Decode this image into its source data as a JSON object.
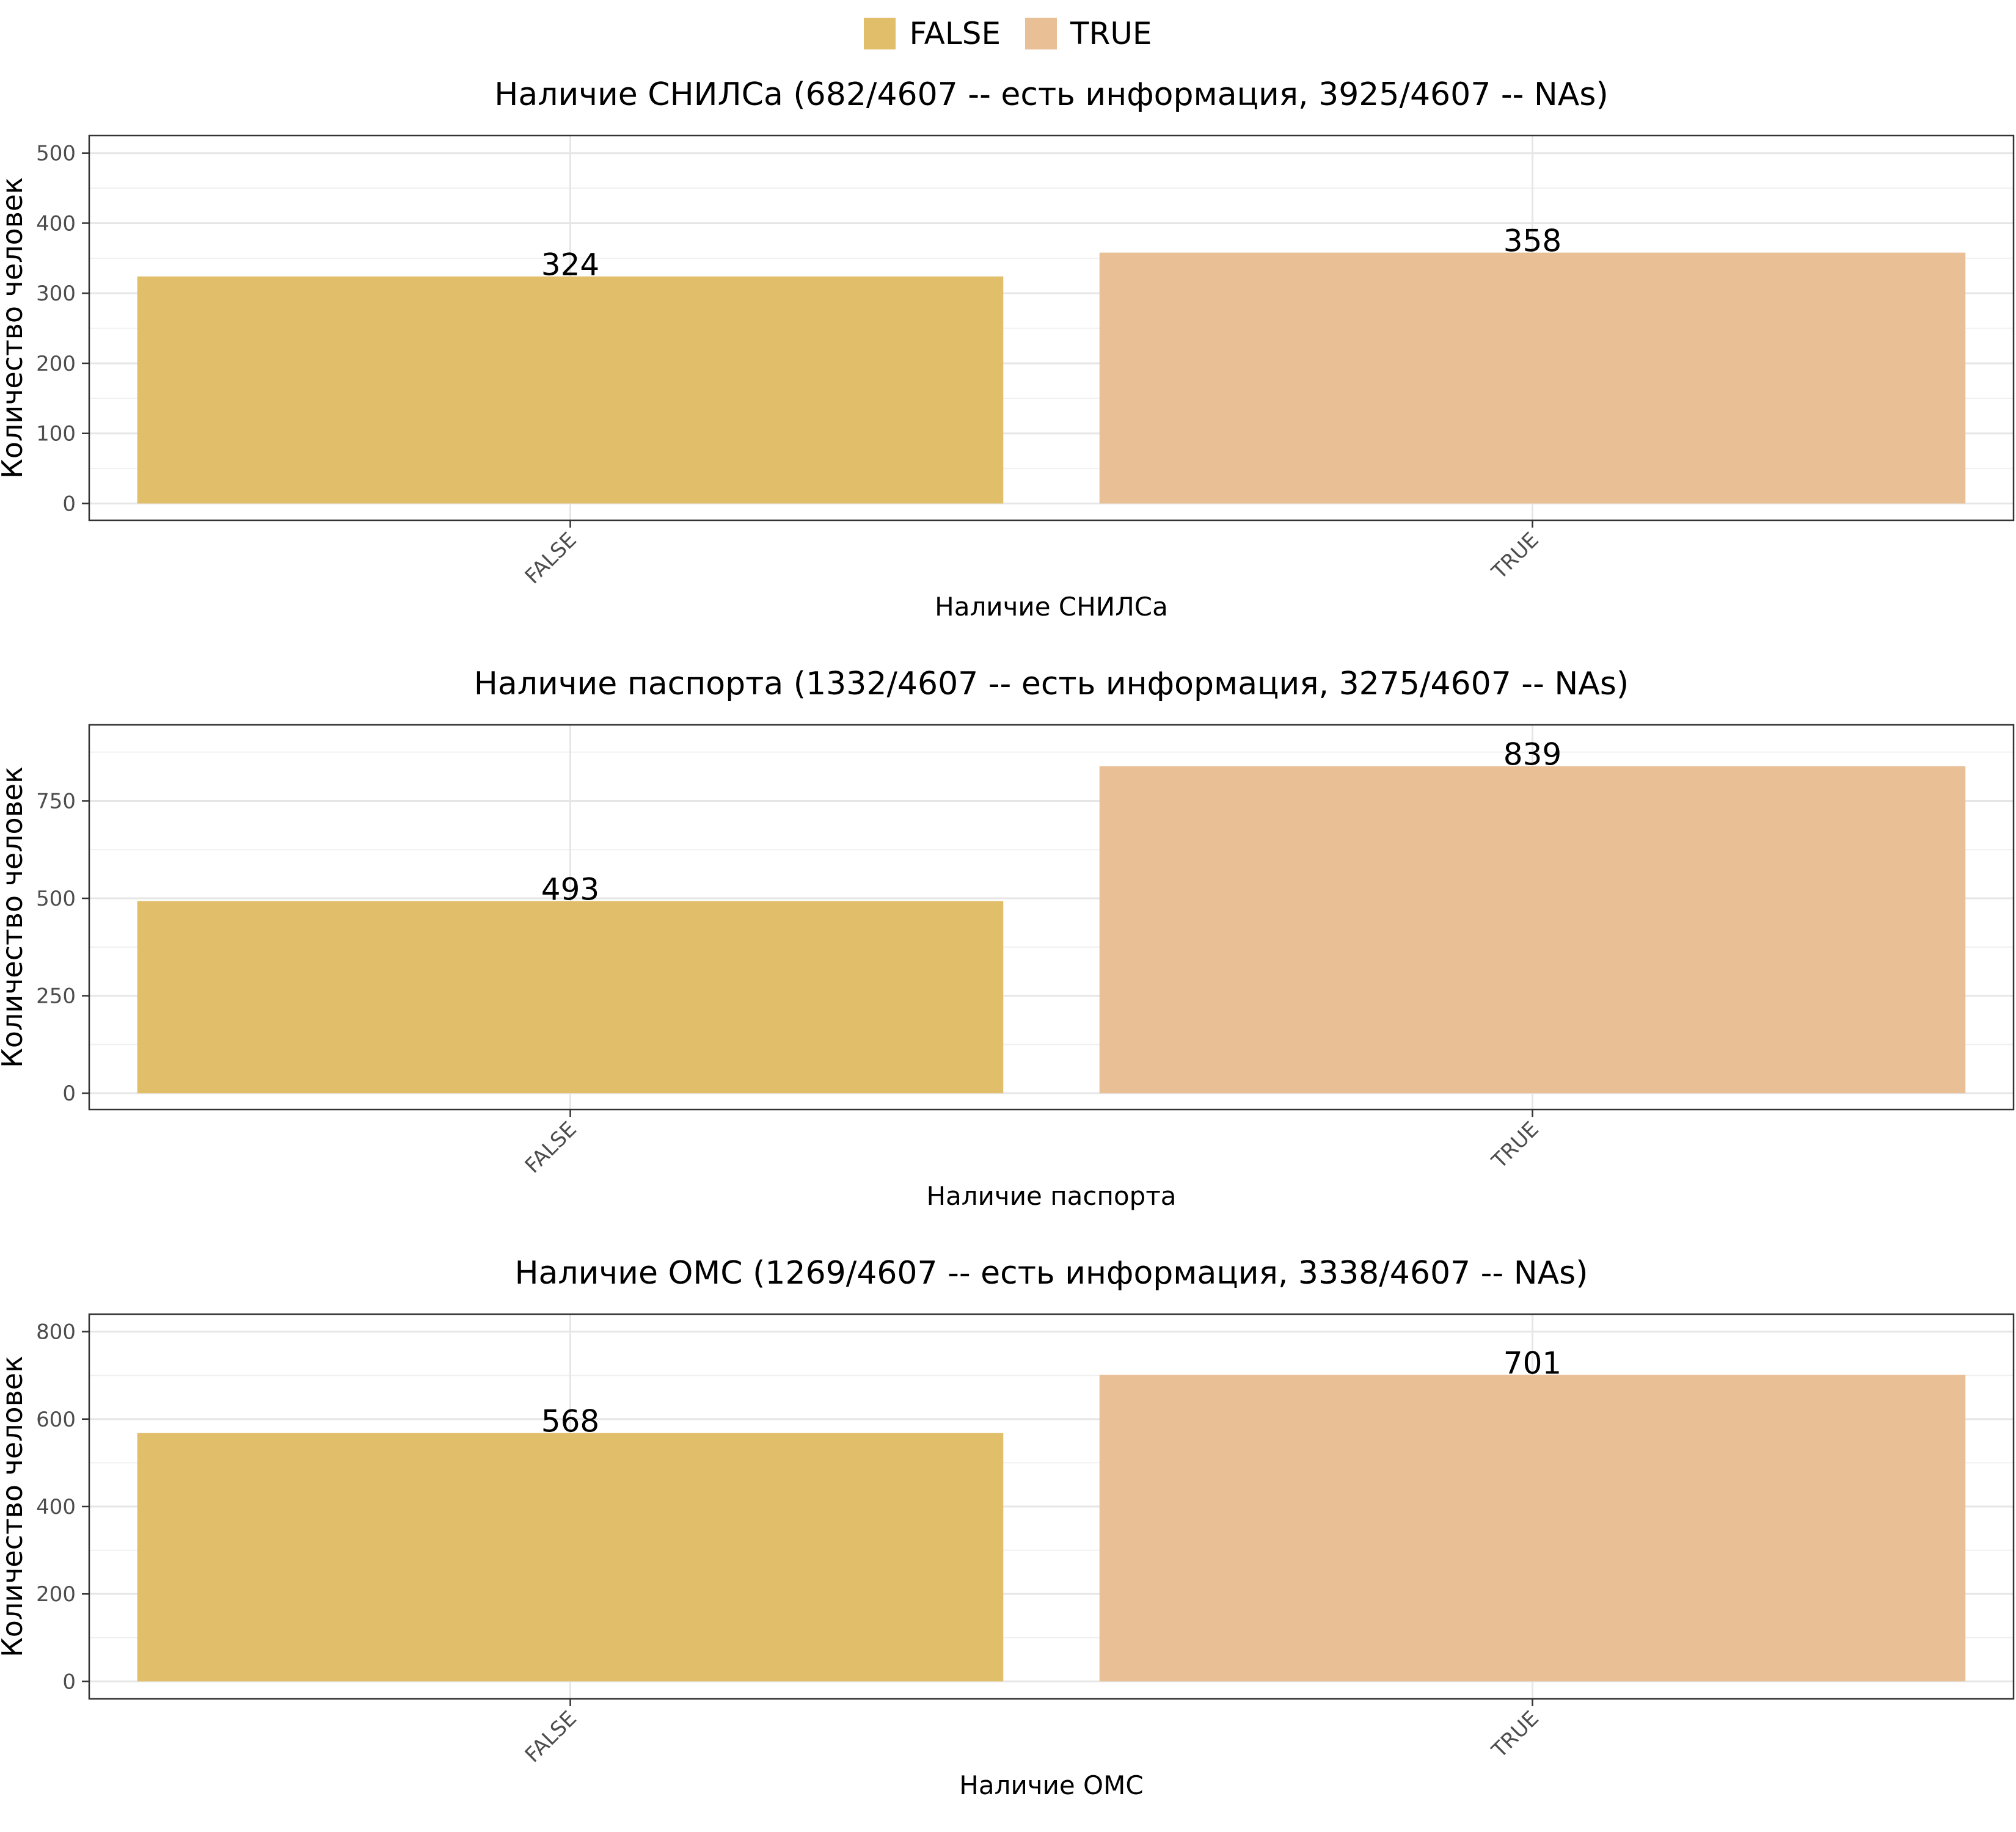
{
  "legend": {
    "items": [
      {
        "label": "FALSE",
        "color": "#E1BE6A"
      },
      {
        "label": "TRUE",
        "color": "#E9BF95"
      }
    ]
  },
  "y_axis_label": "Количество человек",
  "chart_data": [
    {
      "type": "bar",
      "title": "Наличие СНИЛСа (682/4607 -- есть информация, 3925/4607 -- NAs)",
      "xlabel": "Наличие СНИЛСа",
      "ylabel": "Количество человек",
      "categories": [
        "FALSE",
        "TRUE"
      ],
      "values": [
        324,
        358
      ],
      "colors": [
        "#E1BE6A",
        "#E9BF95"
      ],
      "ylim": [
        -24,
        525
      ],
      "yticks": [
        0,
        100,
        200,
        300,
        400,
        500
      ],
      "ytick_labels": [
        "0",
        "100",
        "200",
        "300",
        "400",
        "500"
      ],
      "grid": true
    },
    {
      "type": "bar",
      "title": "Наличие паспорта (1332/4607 -- есть информация, 3275/4607 -- NAs)",
      "xlabel": "Наличие паспорта",
      "ylabel": "Количество человек",
      "categories": [
        "FALSE",
        "TRUE"
      ],
      "values": [
        493,
        839
      ],
      "colors": [
        "#E1BE6A",
        "#E9BF95"
      ],
      "ylim": [
        -42,
        945
      ],
      "yticks": [
        0,
        250,
        500,
        750
      ],
      "ytick_labels": [
        "0",
        "250",
        "500",
        "750"
      ],
      "grid": true
    },
    {
      "type": "bar",
      "title": "Наличие ОМС (1269/4607 -- есть информация, 3338/4607 -- NAs)",
      "xlabel": "Наличие ОМС",
      "ylabel": "Количество человек",
      "categories": [
        "FALSE",
        "TRUE"
      ],
      "values": [
        568,
        701
      ],
      "colors": [
        "#E1BE6A",
        "#E9BF95"
      ],
      "ylim": [
        -40,
        840
      ],
      "yticks": [
        0,
        200,
        400,
        600,
        800
      ],
      "ytick_labels": [
        "0",
        "200",
        "400",
        "600",
        "800"
      ],
      "grid": true
    }
  ]
}
